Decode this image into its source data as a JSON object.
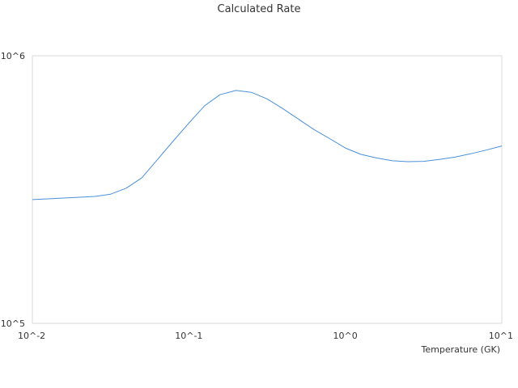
{
  "chart_data": {
    "type": "line",
    "title": "Calculated Rate",
    "xlabel": "Temperature (GK)",
    "ylabel": "",
    "xscale": "log",
    "yscale": "log",
    "xlim": [
      0.01,
      10
    ],
    "ylim": [
      100000,
      1000000
    ],
    "x_tick_values": [
      0.01,
      0.1,
      1,
      10
    ],
    "x_tick_labels": [
      "10^-2",
      "10^-1",
      "10^0",
      "10^1"
    ],
    "y_tick_values": [
      100000,
      1000000
    ],
    "y_tick_labels": [
      "10^5",
      "10^6"
    ],
    "grid": false,
    "legend": "none",
    "series": [
      {
        "color": "#4a90d9",
        "x": [
          0.01,
          0.0126,
          0.0158,
          0.02,
          0.0251,
          0.0316,
          0.0398,
          0.0501,
          0.0631,
          0.0794,
          0.1,
          0.126,
          0.158,
          0.2,
          0.251,
          0.316,
          0.398,
          0.501,
          0.631,
          0.794,
          1.0,
          1.26,
          1.58,
          2.0,
          2.51,
          3.16,
          3.98,
          5.01,
          6.31,
          7.94,
          10.0
        ],
        "y": [
          290000,
          292000,
          294000,
          296000,
          298000,
          304000,
          320000,
          350000,
          410000,
          480000,
          560000,
          650000,
          715000,
          742000,
          730000,
          690000,
          635000,
          580000,
          530000,
          490000,
          452000,
          428000,
          415000,
          405000,
          402000,
          403000,
          410000,
          418000,
          430000,
          444000,
          460000
        ]
      }
    ]
  }
}
